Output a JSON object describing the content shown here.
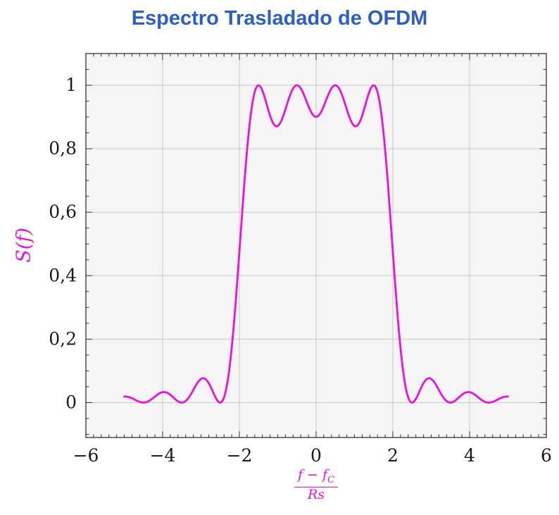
{
  "title": {
    "text": "Espectro Trasladado de OFDM",
    "color": "#2b5fc7"
  },
  "ylabel": {
    "text": "S(f)",
    "color": "#ee11dd"
  },
  "xlabel": {
    "numerator": "f − f",
    "numerator_sub": "C",
    "denominator": "Rs",
    "color": "#ee11dd"
  },
  "chart_data": {
    "type": "line",
    "title": "Espectro Trasladado de OFDM",
    "xlabel": "(f − f_C) / Rs",
    "ylabel": "S(f)",
    "xlim": [
      -6,
      6
    ],
    "ylim": [
      -0.11,
      1.1
    ],
    "grid": true,
    "legend": "none",
    "plot_background": "#f5f5f5",
    "grid_color": "#c9c9c9",
    "frame_color": "#333333",
    "tick_label_color": "#1a1a1a",
    "x_ticks": [
      {
        "v": -6,
        "label": "−6"
      },
      {
        "v": -4,
        "label": "−4"
      },
      {
        "v": -2,
        "label": "−2"
      },
      {
        "v": 0,
        "label": "0"
      },
      {
        "v": 2,
        "label": "2"
      },
      {
        "v": 4,
        "label": "4"
      },
      {
        "v": 6,
        "label": "6"
      }
    ],
    "y_ticks": [
      {
        "v": 0,
        "label": "0"
      },
      {
        "v": 0.2,
        "label": "0,2"
      },
      {
        "v": 0.4,
        "label": "0,4"
      },
      {
        "v": 0.6,
        "label": "0,6"
      },
      {
        "v": 0.8,
        "label": "0,8"
      },
      {
        "v": 1,
        "label": "1"
      }
    ],
    "x_minor_step": 0.2,
    "y_minor_step": 0.05,
    "series": [
      {
        "name": "S(f)",
        "color": "#ee11dd",
        "model": "S(x) = sum over subcarriers k of sinc^2(x - k), sinc(t)=sin(pi t)/(pi t)",
        "subcarriers": [
          -1.5,
          -0.5,
          0.5,
          1.5
        ],
        "x_start": -5,
        "x_end": 5,
        "x_step": 0.02,
        "key_points": [
          {
            "x": -5,
            "y": 0.019
          },
          {
            "x": -4.5,
            "y": 0
          },
          {
            "x": -4,
            "y": 0.033
          },
          {
            "x": -3.5,
            "y": 0
          },
          {
            "x": -3,
            "y": 0.075
          },
          {
            "x": -2.5,
            "y": 0
          },
          {
            "x": -2,
            "y": 0.475
          },
          {
            "x": -1.5,
            "y": 1.0
          },
          {
            "x": -1,
            "y": 0.872
          },
          {
            "x": -0.5,
            "y": 1.0
          },
          {
            "x": 0,
            "y": 0.901
          },
          {
            "x": 0.5,
            "y": 1.0
          },
          {
            "x": 1,
            "y": 0.872
          },
          {
            "x": 1.5,
            "y": 1.0
          },
          {
            "x": 2,
            "y": 0.475
          },
          {
            "x": 2.5,
            "y": 0
          },
          {
            "x": 3,
            "y": 0.075
          },
          {
            "x": 3.5,
            "y": 0
          },
          {
            "x": 4,
            "y": 0.033
          },
          {
            "x": 4.5,
            "y": 0
          },
          {
            "x": 5,
            "y": 0.019
          }
        ]
      }
    ]
  }
}
